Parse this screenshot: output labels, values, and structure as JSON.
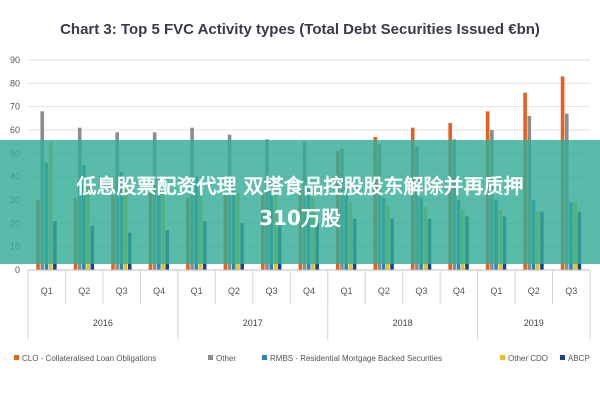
{
  "chart_data": {
    "type": "bar",
    "title": "Chart 3: Top 5 FVC Activity types (Total Debt Securities Issued €bn)",
    "ylim": [
      0,
      90
    ],
    "yticks": [
      "0",
      "10",
      "20",
      "30",
      "40",
      "50",
      "60",
      "70",
      "80",
      "90"
    ],
    "categories": [
      "Q1",
      "Q2",
      "Q3",
      "Q4",
      "Q1",
      "Q2",
      "Q3",
      "Q4",
      "Q1",
      "Q2",
      "Q3",
      "Q4",
      "Q1",
      "Q2",
      "Q3"
    ],
    "years": [
      {
        "label": "2016",
        "span": 4
      },
      {
        "label": "2017",
        "span": 4
      },
      {
        "label": "2018",
        "span": 4
      },
      {
        "label": "2019",
        "span": 3
      }
    ],
    "grid": true,
    "legend_position": "bottom",
    "series": [
      {
        "name": "CLO - Collateralised Loan Obligations",
        "color": "#e8601c",
        "values": [
          30,
          31,
          32,
          33,
          31,
          32,
          33,
          34,
          51,
          57,
          61,
          63,
          68,
          76,
          83
        ]
      },
      {
        "name": "Other",
        "color": "#8c8c8c",
        "values": [
          68,
          61,
          59,
          59,
          61,
          58,
          56,
          55,
          52,
          54,
          53,
          56,
          60,
          66,
          67
        ]
      },
      {
        "name": "RMBS - Residential Mortgage Backed Securities",
        "color": "#2a86b8",
        "values": [
          46,
          45,
          42,
          40,
          40,
          38,
          37,
          35,
          35,
          31,
          31,
          30,
          30,
          30,
          29
        ]
      },
      {
        "name": "Other CDO",
        "color": "#e8c21c",
        "values": [
          55,
          36,
          35,
          34,
          34,
          33,
          32,
          31,
          29,
          28,
          27,
          26,
          26,
          25,
          29
        ]
      },
      {
        "name": "ABCP",
        "color": "#1f3f8f",
        "values": [
          21,
          19,
          16,
          17,
          21,
          20,
          19,
          20,
          22,
          22,
          22,
          23,
          23,
          25,
          25
        ]
      }
    ]
  },
  "overlay": {
    "line1": "低息股票配资代理 双塔食品控股股东解除并再质押",
    "line2": "310万股"
  }
}
